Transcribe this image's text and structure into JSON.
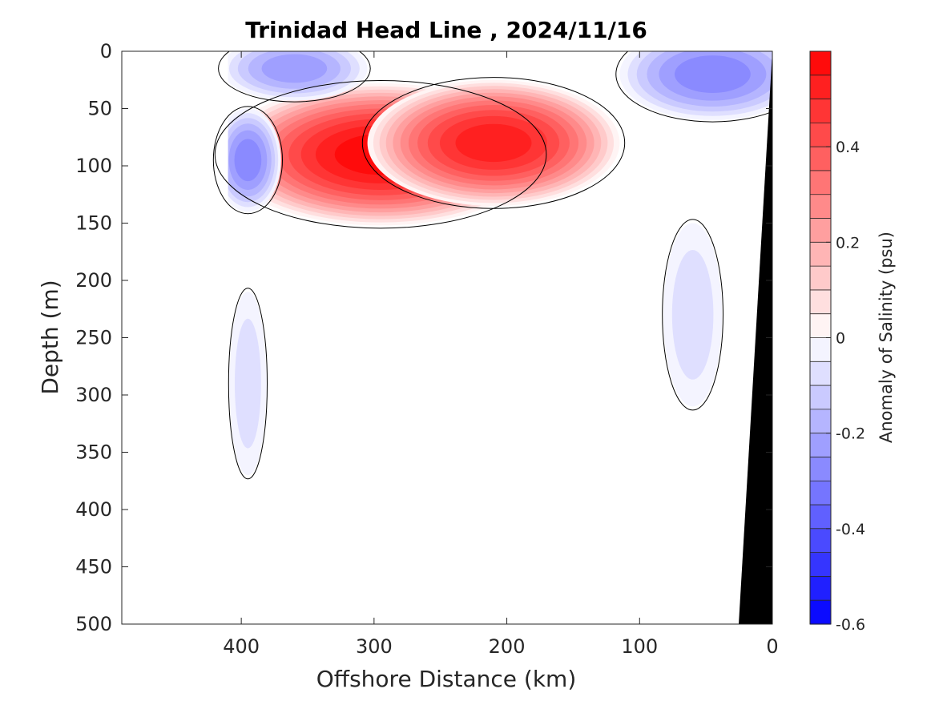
{
  "chart_data": {
    "type": "heatmap",
    "subtype": "filled-contour section",
    "title": "Trinidad Head Line , 2024/11/16",
    "xlabel": "Offshore Distance (km)",
    "ylabel": "Depth (m)",
    "xlim": [
      490,
      0
    ],
    "ylim": [
      500,
      0
    ],
    "x_reversed": true,
    "y_reversed": true,
    "xticks": [
      400,
      300,
      200,
      100,
      0
    ],
    "yticks": [
      0,
      50,
      100,
      150,
      200,
      250,
      300,
      350,
      400,
      450,
      500
    ],
    "data_extent_km": [
      410,
      0
    ],
    "contour_line_level": 0,
    "colorbar": {
      "label": "Anomaly of Salinity (psu)",
      "range": [
        -0.6,
        0.6
      ],
      "step": 0.05,
      "ticks": [
        0.4,
        0.2,
        0,
        -0.2,
        -0.4,
        -0.6
      ],
      "tick_labels": [
        "0.4",
        "0.2",
        "0",
        "-0.2",
        "-0.4",
        "-0.6"
      ],
      "colormap": "blue-white-red",
      "min_color": "#0000ff",
      "max_color": "#ff0000"
    },
    "features": [
      {
        "kind": "positive",
        "x": 295,
        "depth": 90,
        "peak": 0.6,
        "rx": 120,
        "ry": 62
      },
      {
        "kind": "positive",
        "x": 210,
        "depth": 80,
        "peak": 0.55,
        "rx": 95,
        "ry": 55
      },
      {
        "kind": "negative",
        "x": 360,
        "depth": 15,
        "peak": -0.25,
        "rx": 55,
        "ry": 28
      },
      {
        "kind": "negative",
        "x": 395,
        "depth": 95,
        "peak": -0.3,
        "rx": 25,
        "ry": 45
      },
      {
        "kind": "negative",
        "x": 45,
        "depth": 20,
        "peak": -0.28,
        "rx": 70,
        "ry": 40
      },
      {
        "kind": "negative",
        "x": 60,
        "depth": 230,
        "peak": -0.1,
        "rx": 22,
        "ry": 80
      },
      {
        "kind": "negative",
        "x": 395,
        "depth": 290,
        "peak": -0.08,
        "rx": 14,
        "ry": 80
      }
    ],
    "bathymetry_color": "#000000"
  }
}
